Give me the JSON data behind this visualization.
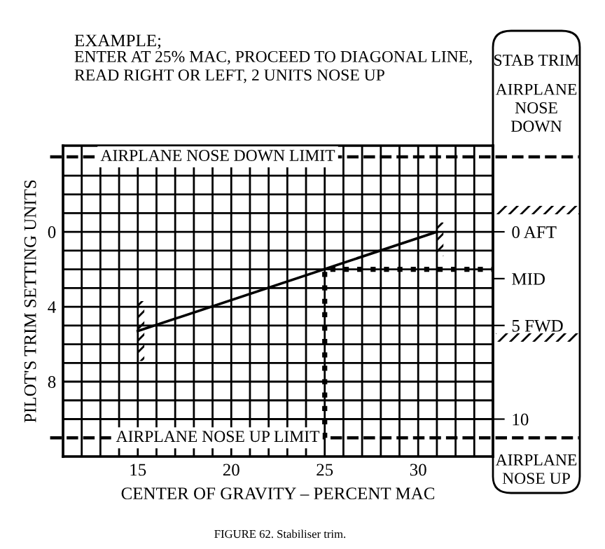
{
  "chart_data": {
    "type": "line",
    "xlabel": "CENTER OF GRAVITY – PERCENT MAC",
    "ylabel": "PILOT'S TRIM SETTING UNITS",
    "series": [
      {
        "type": "line",
        "color": "#000000",
        "x": [
          15,
          31
        ],
        "values": [
          5.3,
          0
        ],
        "line_style": "solid"
      },
      {
        "type": "line",
        "color": "#000000",
        "x": [
          25,
          25,
          34
        ],
        "values": [
          11,
          2,
          2
        ],
        "line_style": "dotted"
      }
    ],
    "xlim": [
      11,
      34
    ],
    "xticks": [
      {
        "value": 11,
        "label": null
      },
      {
        "value": 12,
        "label": null
      },
      {
        "value": 13,
        "label": null
      },
      {
        "value": 14,
        "label": null
      },
      15,
      {
        "value": 16,
        "label": null
      },
      {
        "value": 17,
        "label": null
      },
      {
        "value": 18,
        "label": null
      },
      {
        "value": 19,
        "label": null
      },
      20,
      {
        "value": 21,
        "label": null
      },
      {
        "value": 22,
        "label": null
      },
      {
        "value": 23,
        "label": null
      },
      {
        "value": 24,
        "label": null
      },
      25,
      {
        "value": 26,
        "label": null
      },
      {
        "value": 27,
        "label": null
      },
      {
        "value": 28,
        "label": null
      },
      {
        "value": 29,
        "label": null
      },
      30,
      {
        "value": 31,
        "label": null
      },
      {
        "value": 32,
        "label": null
      },
      {
        "value": 33,
        "label": null
      },
      {
        "value": 34,
        "label": null
      }
    ],
    "ylim": [
      12,
      -4.6
    ],
    "yticks": [
      {
        "value": -3,
        "label": null
      },
      {
        "value": -2,
        "label": null
      },
      {
        "value": -1,
        "label": null
      },
      0,
      {
        "value": 1,
        "label": null
      },
      {
        "value": 2,
        "label": null
      },
      {
        "value": 3,
        "label": null
      },
      4,
      {
        "value": 5,
        "label": null
      },
      {
        "value": 6,
        "label": null
      },
      {
        "value": 7,
        "label": null
      },
      8,
      {
        "value": 9,
        "label": null
      },
      {
        "value": 10,
        "label": null
      },
      {
        "value": 12,
        "label": null
      }
    ],
    "y2lim": [
      12,
      -4.6
    ],
    "y2ticks": [
      {
        "value": 0,
        "label": "0 AFT"
      },
      {
        "value": 2.5,
        "label": "MID"
      },
      {
        "value": 5,
        "label": "5 FWD"
      },
      10
    ],
    "grid": true,
    "legend": false,
    "ref_lines": [
      {
        "axis": "y",
        "value": -4,
        "label": "AIRPLANE NOSE DOWN LIMIT",
        "color": "#000000",
        "line_style": "dashed"
      },
      {
        "axis": "y",
        "value": 11,
        "label": "AIRPLANE NOSE UP LIMIT",
        "color": "#000000",
        "line_style": "dashed"
      }
    ],
    "annotations": [
      "EXAMPLE;",
      "ENTER AT 25% MAC, PROCEED TO DIAGONAL LINE,\nREAD RIGHT OR LEFT, 2 UNITS NOSE UP",
      "STAB TRIM",
      "AIRPLANE\nNOSE\nDOWN",
      "AIRPLANE\nNOSE UP",
      "FIGURE 62. Stabiliser trim."
    ]
  }
}
